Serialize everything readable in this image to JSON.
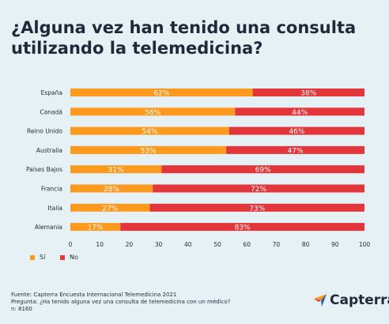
{
  "title_line1": "¿Alguna vez han tenido una consulta",
  "title_line2": "utilizando la telemedicina?",
  "chart_data": {
    "type": "bar",
    "orientation": "horizontal",
    "stacked": true,
    "categories": [
      "España",
      "Canadá",
      "Reino Unido",
      "Australia",
      "Países Bajos",
      "Francia",
      "Italia",
      "Alemania"
    ],
    "series": [
      {
        "name": "Sí",
        "values": [
          62,
          56,
          54,
          53,
          31,
          28,
          27,
          17
        ],
        "labels": [
          "62%",
          "56%",
          "54%",
          "53%",
          "31%",
          "28%",
          "27%",
          "17%"
        ],
        "color": "#ff9a1f"
      },
      {
        "name": "No",
        "values": [
          38,
          44,
          46,
          47,
          69,
          72,
          73,
          83
        ],
        "labels": [
          "38%",
          "44%",
          "46%",
          "47%",
          "69%",
          "72%",
          "73%",
          "83%"
        ],
        "color": "#e2363a"
      }
    ],
    "xlim": [
      0,
      100
    ],
    "xticks": [
      "0",
      "10",
      "20",
      "30",
      "40",
      "50",
      "60",
      "70",
      "80",
      "90",
      "100"
    ],
    "grid": false,
    "legend": "bottom-left"
  },
  "legend": {
    "yes": "Sí",
    "no": "No"
  },
  "footer": {
    "source": "Fuente: Capterra Encuesta Internacional Telemedicina 2021",
    "question": "Pregunta: ¿Ha tenido alguna vez una consulta de telemedicina con un médico?",
    "n": "n: 8160"
  },
  "logo": {
    "text": "Capterra",
    "icon": "capterra-arrow-icon"
  },
  "colors": {
    "yes": "#ff9a1f",
    "no": "#e2363a",
    "background": "#e6f1f6",
    "text": "#1d2a3a",
    "logo_blue": "#1f5ea8"
  }
}
